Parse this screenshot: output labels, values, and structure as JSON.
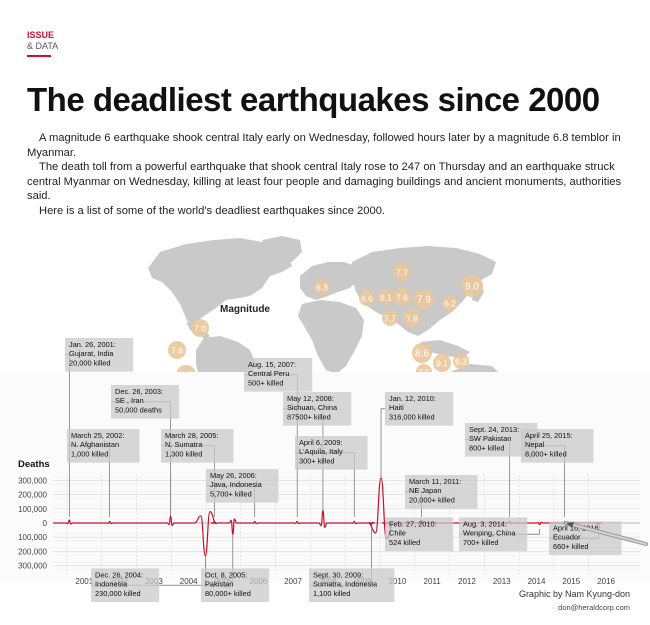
{
  "section": {
    "line1": "ISSUE",
    "line2": "& DATA"
  },
  "title": "The deadliest earthquakes since 2000",
  "intro": [
    "A magnitude 6 earthquake shook central Italy early on Wednesday, followed hours later by a magnitude 6.8 temblor in Myanmar.",
    "The death toll from a powerful earthquake that shook central Italy rose to 247 on Thursday and an earthquake struck central Myanmar on Wednesday, killing at least four people and damaging buildings and ancient monuments, authorities said.",
    "Here is a list of some of the world's deadliest earthquakes since 2000."
  ],
  "map": {
    "magnitude_label": "Magnitude",
    "land_color": "#c9c9c9",
    "bubble_color": "#e9c79a",
    "magnitudes": [
      {
        "value": "7.0",
        "region": "Central America"
      },
      {
        "value": "7.8",
        "region": "Ecuador"
      },
      {
        "value": "8.0",
        "region": "Peru"
      },
      {
        "value": "8.8",
        "region": "Chile"
      },
      {
        "value": "6.3",
        "region": "Italy"
      },
      {
        "value": "7.7",
        "region": "Central Asia"
      },
      {
        "value": "6.6",
        "region": "Iran"
      },
      {
        "value": "6.1",
        "region": "Afghanistan"
      },
      {
        "value": "7.6",
        "region": "Pakistan"
      },
      {
        "value": "7.7",
        "region": "India"
      },
      {
        "value": "7.8",
        "region": "Nepal"
      },
      {
        "value": "7.9",
        "region": "China"
      },
      {
        "value": "6.2",
        "region": "East China"
      },
      {
        "value": "9.0",
        "region": "Japan"
      },
      {
        "value": "8.6",
        "region": "Sumatra"
      },
      {
        "value": "9.1",
        "region": "Indian Ocean"
      },
      {
        "value": "6.3",
        "region": "Java"
      },
      {
        "value": "7.5",
        "region": "Sumatra South"
      }
    ]
  },
  "chart_data": {
    "type": "line",
    "ylabel": "Deaths",
    "yticks": [
      "300,000",
      "200,000",
      "100,000",
      "0",
      "100,000",
      "200,000",
      "300,000"
    ],
    "ytick_values": [
      300000,
      200000,
      100000,
      0,
      -100000,
      -200000,
      -300000
    ],
    "ylim": [
      -300000,
      300000
    ],
    "xticks": [
      "2001",
      "2002",
      "2003",
      "2004",
      "2005",
      "2006",
      "2007",
      "2008",
      "2009",
      "2010",
      "2011",
      "2012",
      "2013",
      "2014",
      "2015",
      "2016"
    ],
    "xlim": [
      2000.6,
      2016.9
    ],
    "line_color": "#c8102e",
    "events": [
      {
        "x": 2001.07,
        "y": 20000,
        "lines": [
          "Jan. 26, 2001:",
          "Gujarat, India",
          "20,000 killed"
        ]
      },
      {
        "x": 2002.23,
        "y": 1000,
        "lines": [
          "March 25, 2002:",
          "N. Afghanistan",
          "1,000 killed"
        ]
      },
      {
        "x": 2003.98,
        "y": 50000,
        "lines": [
          "Dec. 26, 2003:",
          "SE , Iran",
          "50,000 deaths"
        ]
      },
      {
        "x": 2004.98,
        "y": -230000,
        "lines": [
          "Dec. 26, 2004:",
          "Indonesia",
          "230,000 killed"
        ]
      },
      {
        "x": 2005.24,
        "y": 1300,
        "lines": [
          "March 28, 2005:",
          "N. Sumatra",
          "1,300 killed"
        ]
      },
      {
        "x": 2005.77,
        "y": -80000,
        "lines": [
          "Oct. 8, 2005:",
          "Pakistan",
          "80,000+ killed"
        ]
      },
      {
        "x": 2006.4,
        "y": 5700,
        "lines": [
          "May 26, 2006:",
          "Java, Indonesia",
          "5,700+ killed"
        ]
      },
      {
        "x": 2007.62,
        "y": 500,
        "lines": [
          "Aug. 15, 2007:",
          "Central Peru",
          "500+ killed"
        ]
      },
      {
        "x": 2008.36,
        "y": 87500,
        "lines": [
          "May 12, 2008:",
          "Sichuan, China",
          "87500+ killed"
        ]
      },
      {
        "x": 2009.26,
        "y": 300,
        "lines": [
          "April 6, 2009:",
          "L'Aquila, Italy",
          "300+ killed"
        ]
      },
      {
        "x": 2009.75,
        "y": -1100,
        "lines": [
          "Sept. 30, 2009:",
          "Sumatra, Indonesia",
          "1,100 killed"
        ]
      },
      {
        "x": 2010.03,
        "y": 316000,
        "lines": [
          "Jan. 12, 2010:",
          "Haiti",
          "316,000 killed"
        ]
      },
      {
        "x": 2010.16,
        "y": -524,
        "lines": [
          "Feb. 27, 2010:",
          "Chile",
          "524 killed"
        ]
      },
      {
        "x": 2011.19,
        "y": 20000,
        "lines": [
          "March 11, 2011:",
          "NE Japan",
          "20,000+ killed"
        ]
      },
      {
        "x": 2013.73,
        "y": 800,
        "lines": [
          "Sept. 24, 2013:",
          "SW Pakistan",
          "800+ killed"
        ]
      },
      {
        "x": 2014.59,
        "y": -700,
        "lines": [
          "Aug. 3, 2014:",
          "Wenping, China",
          "700+ killed"
        ]
      },
      {
        "x": 2015.31,
        "y": 8000,
        "lines": [
          "April 25, 2015:",
          "Nepal",
          "8,000+ killed"
        ]
      },
      {
        "x": 2016.29,
        "y": -660,
        "lines": [
          "April 16, 2016:",
          "Ecuador",
          "660+ killed"
        ]
      }
    ]
  },
  "credit": {
    "line1": "Graphic by Nam Kyung-don",
    "line2": "don@heraldcorp.com"
  }
}
